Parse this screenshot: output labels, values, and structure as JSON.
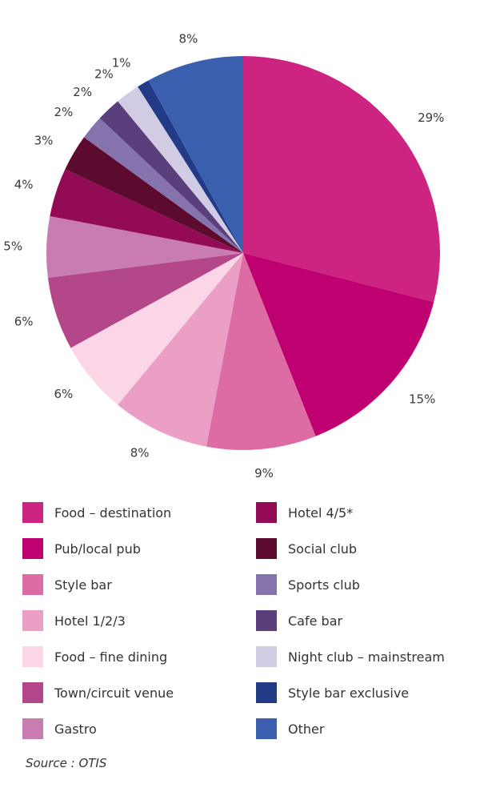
{
  "chart_data": {
    "type": "pie",
    "title": "",
    "start_angle_deg": 0,
    "direction": "clockwise",
    "slices": [
      {
        "label": "Food – destination",
        "value": 29,
        "value_label": "29%",
        "color": "#cc2480"
      },
      {
        "label": "Pub/local pub",
        "value": 15,
        "value_label": "15%",
        "color": "#bf0070"
      },
      {
        "label": "Style bar",
        "value": 9,
        "value_label": "9%",
        "color": "#dd6ba4"
      },
      {
        "label": "Hotel 1/2/3",
        "value": 8,
        "value_label": "8%",
        "color": "#ec9fc4"
      },
      {
        "label": "Food – fine dining",
        "value": 6,
        "value_label": "6%",
        "color": "#fad6e7"
      },
      {
        "label": "Town/circuit venue",
        "value": 6,
        "value_label": "6%",
        "color": "#b4478a"
      },
      {
        "label": "Gastro",
        "value": 5,
        "value_label": "5%",
        "color": "#c97caf"
      },
      {
        "label": "Hotel 4/5*",
        "value": 4,
        "value_label": "4%",
        "color": "#930a55"
      },
      {
        "label": "Social club",
        "value": 3,
        "value_label": "3%",
        "color": "#5c0a2e"
      },
      {
        "label": "Sports club",
        "value": 2,
        "value_label": "2%",
        "color": "#8573ad"
      },
      {
        "label": "Cafe bar",
        "value": 2,
        "value_label": "2%",
        "color": "#5a3f7c"
      },
      {
        "label": "Night club – mainstream",
        "value": 2,
        "value_label": "2%",
        "color": "#d2cbe4"
      },
      {
        "label": "Style bar exclusive",
        "value": 1,
        "value_label": "1%",
        "color": "#233a86"
      },
      {
        "label": "Other",
        "value": 8,
        "value_label": "8%",
        "color": "#3a5fae"
      }
    ],
    "legend": {
      "placement": "bottom",
      "columns": 2
    }
  },
  "source": "Source : OTIS"
}
